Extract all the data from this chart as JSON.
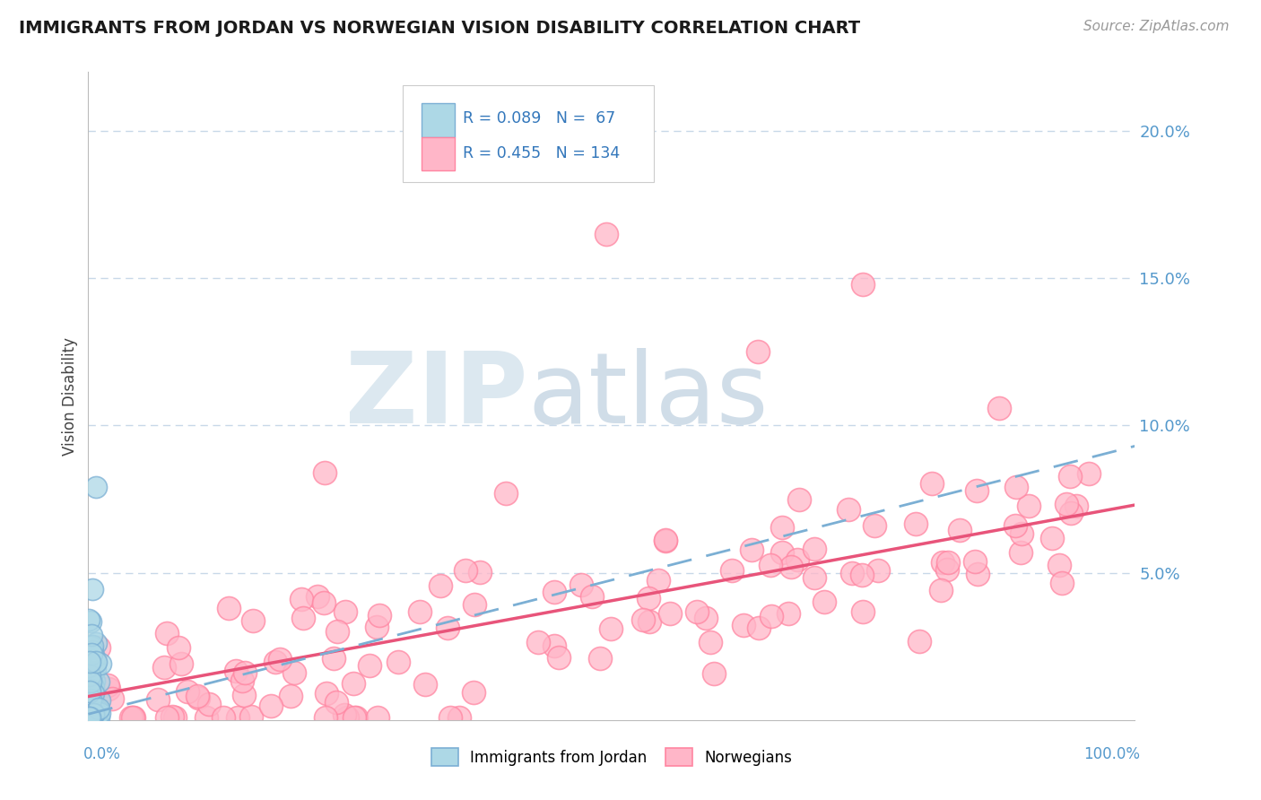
{
  "title": "IMMIGRANTS FROM JORDAN VS NORWEGIAN VISION DISABILITY CORRELATION CHART",
  "source": "Source: ZipAtlas.com",
  "ylabel": "Vision Disability",
  "legend_label1": "Immigrants from Jordan",
  "legend_label2": "Norwegians",
  "blue_edge": "#7BAFD4",
  "blue_face": "#ADD8E6",
  "pink_edge": "#FF85A1",
  "pink_face": "#FFB6C8",
  "blue_line": "#7BAFD4",
  "pink_line": "#E8547A",
  "grid_color": "#C8D8E8",
  "xlim": [
    0.0,
    1.0
  ],
  "ylim": [
    0.0,
    0.22
  ],
  "norw_trend_start": 0.008,
  "norw_trend_end": 0.073,
  "jordan_trend_start": 0.002,
  "jordan_trend_end": 0.093
}
